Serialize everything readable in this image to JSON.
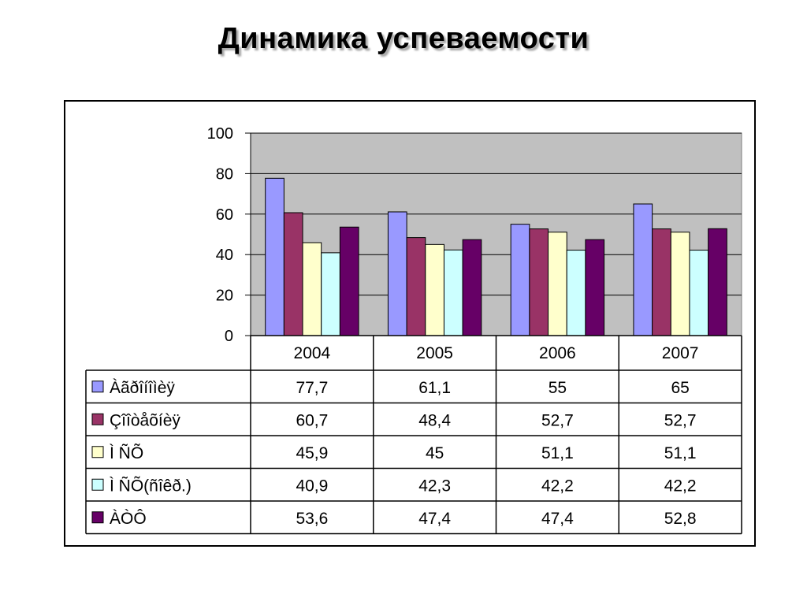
{
  "title": "Динамика успеваемости",
  "chart_data": {
    "type": "bar",
    "categories": [
      "2004",
      "2005",
      "2006",
      "2007"
    ],
    "series": [
      {
        "name": "Àãðîíîìèÿ",
        "color": "#9999ff",
        "values": [
          77.7,
          61.1,
          55,
          65
        ],
        "labels": [
          "77,7",
          "61,1",
          "55",
          "65"
        ]
      },
      {
        "name": "Çîîòåõíèÿ",
        "color": "#993366",
        "values": [
          60.7,
          48.4,
          52.7,
          52.7
        ],
        "labels": [
          "60,7",
          "48,4",
          "52,7",
          "52,7"
        ]
      },
      {
        "name": "Ì ÑÕ",
        "color": "#ffffcc",
        "values": [
          45.9,
          45,
          51.1,
          51.1
        ],
        "labels": [
          "45,9",
          "45",
          "51,1",
          "51,1"
        ]
      },
      {
        "name": "Ì ÑÕ(ñîêð.)",
        "color": "#ccffff",
        "values": [
          40.9,
          42.3,
          42.2,
          42.2
        ],
        "labels": [
          "40,9",
          "42,3",
          "42,2",
          "42,2"
        ]
      },
      {
        "name": "ÀÒÔ",
        "color": "#660066",
        "values": [
          53.6,
          47.4,
          47.4,
          52.8
        ],
        "labels": [
          "53,6",
          "47,4",
          "47,4",
          "52,8"
        ]
      }
    ],
    "ylim": [
      0,
      100
    ],
    "yticks": [
      "0",
      "20",
      "40",
      "60",
      "80",
      "100"
    ],
    "grid": true,
    "legend": "data-table",
    "plot_background": "#c0c0c0"
  }
}
